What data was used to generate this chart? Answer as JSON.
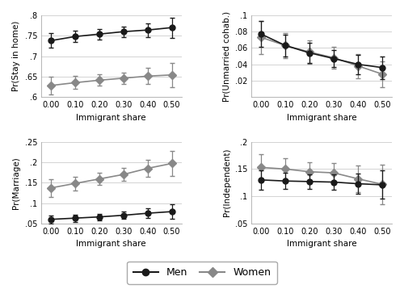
{
  "x": [
    0.0,
    0.1,
    0.2,
    0.3,
    0.4,
    0.5
  ],
  "panels": [
    {
      "ylabel": "Pr(Stay in home)",
      "ylim": [
        0.6,
        0.8
      ],
      "yticks": [
        0.6,
        0.65,
        0.7,
        0.75,
        0.8
      ],
      "yticklabels": [
        ".6",
        ".65",
        ".7",
        ".75",
        ".8"
      ],
      "men_y": [
        0.738,
        0.748,
        0.754,
        0.76,
        0.764,
        0.77
      ],
      "men_err": [
        0.018,
        0.014,
        0.013,
        0.013,
        0.017,
        0.025
      ],
      "women_y": [
        0.628,
        0.635,
        0.641,
        0.646,
        0.651,
        0.654
      ],
      "women_err": [
        0.021,
        0.016,
        0.014,
        0.014,
        0.02,
        0.03
      ]
    },
    {
      "ylabel": "Pr(Unmarried cohab.)",
      "ylim": [
        0.0,
        0.1
      ],
      "yticks": [
        0.02,
        0.04,
        0.06,
        0.08,
        0.1
      ],
      "yticklabels": [
        ".02",
        ".04",
        ".06",
        ".08",
        ".1"
      ],
      "men_y": [
        0.077,
        0.063,
        0.054,
        0.047,
        0.04,
        0.036
      ],
      "men_err": [
        0.016,
        0.013,
        0.012,
        0.01,
        0.012,
        0.014
      ],
      "women_y": [
        0.073,
        0.063,
        0.055,
        0.048,
        0.038,
        0.028
      ],
      "women_err": [
        0.02,
        0.015,
        0.014,
        0.013,
        0.015,
        0.016
      ]
    },
    {
      "ylabel": "Pr(Marriage)",
      "ylim": [
        0.05,
        0.25
      ],
      "yticks": [
        0.05,
        0.1,
        0.15,
        0.2,
        0.25
      ],
      "yticklabels": [
        ".05",
        ".1",
        ".15",
        ".2",
        ".25"
      ],
      "men_y": [
        0.06,
        0.063,
        0.066,
        0.07,
        0.075,
        0.079
      ],
      "men_err": [
        0.01,
        0.009,
        0.008,
        0.009,
        0.012,
        0.018
      ],
      "women_y": [
        0.137,
        0.148,
        0.159,
        0.17,
        0.185,
        0.197
      ],
      "women_err": [
        0.022,
        0.017,
        0.015,
        0.016,
        0.02,
        0.03
      ]
    },
    {
      "ylabel": "Pr(Independent)",
      "ylim": [
        0.05,
        0.2
      ],
      "yticks": [
        0.05,
        0.1,
        0.15,
        0.2
      ],
      "yticklabels": [
        ".05",
        ".1",
        ".15",
        ".2"
      ],
      "men_y": [
        0.13,
        0.128,
        0.127,
        0.126,
        0.123,
        0.121
      ],
      "men_err": [
        0.018,
        0.015,
        0.013,
        0.014,
        0.018,
        0.026
      ],
      "women_y": [
        0.153,
        0.15,
        0.145,
        0.143,
        0.132,
        0.122
      ],
      "women_err": [
        0.025,
        0.02,
        0.017,
        0.018,
        0.024,
        0.036
      ]
    }
  ],
  "xlabel": "Immigrant share",
  "xticks": [
    0.0,
    0.1,
    0.2,
    0.3,
    0.4,
    0.5
  ],
  "xticklabels": [
    "0.00",
    "0.10",
    "0.20",
    "0.30",
    "0.40",
    "0.50"
  ],
  "men_color": "#1a1a1a",
  "women_color": "#888888",
  "men_marker": "o",
  "women_marker": "D",
  "marker_size_men": 5,
  "marker_size_women": 5,
  "linewidth": 1.2,
  "capsize": 2.5,
  "elinewidth": 0.9,
  "legend_labels": [
    "Men",
    "Women"
  ],
  "background_color": "#ffffff",
  "grid_color": "#cccccc",
  "font_size": 7.5,
  "tick_label_size": 7,
  "legend_font_size": 9
}
